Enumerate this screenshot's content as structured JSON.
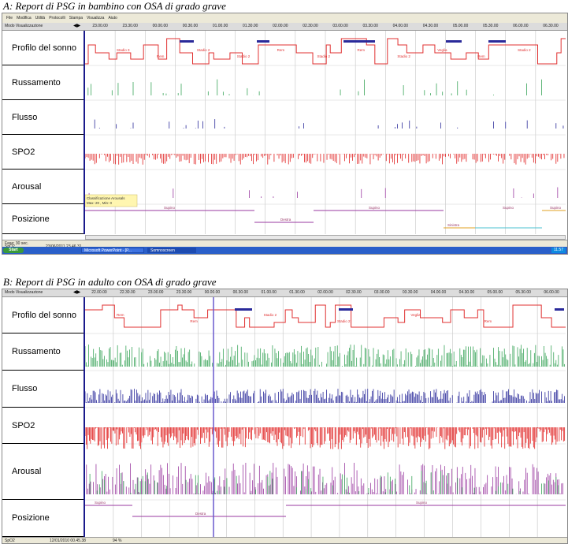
{
  "captions": {
    "a": "A: Report di PSG in bambino con OSA di grado grave",
    "b": "B: Report di PSG in adulto con OSA di grado grave"
  },
  "panel_a": {
    "menu": [
      "File",
      "Modifica",
      "Utilità",
      "Protocolli",
      "Stampa",
      "Visualizza",
      "Aiuto"
    ],
    "mode_label": "Modo Visualizzazione",
    "mode_arrows": "◀▶",
    "time_ticks": [
      "23.00.00",
      "23.30.00",
      "00.00.00",
      "00.30.00",
      "01.00.00",
      "01.30.00",
      "02.00.00",
      "02.30.00",
      "03.00.00",
      "03.30.00",
      "04.00.00",
      "04.30.00",
      "05.00.00",
      "05.30.00",
      "06.00.00",
      "06.30.00"
    ],
    "channels": [
      "Profilo del sonno",
      "Russamento",
      "Flusso",
      "SPO2",
      "Arousal",
      "Posizione"
    ],
    "hypno_labels": [
      "Stadio 3",
      "Rem",
      "Stadio 2",
      "Stadio 2",
      "Rem",
      "Stadio 2",
      "Rem",
      "Stadio 2",
      "Veglia",
      "Rem",
      "Stadio 2"
    ],
    "arousal_note_1": "Classificazione Arousals",
    "arousal_note_2": "Max: 20 , Min: 0",
    "position_labels": [
      "Supino",
      "Destra",
      "Supino",
      "Sinistra",
      "Supino",
      "Supino"
    ],
    "status": [
      "Fase: 30 sec.",
      "SpO2",
      "23/06/2011 23.46.31"
    ],
    "taskbar": {
      "start": "Start",
      "tasks": [
        "Microsoft PowerPoint - [P...",
        "Somnoscreen"
      ],
      "clock": "11.57"
    }
  },
  "panel_b": {
    "mode_label": "Modo Visualizzazione",
    "mode_arrows": "◀▶",
    "time_ticks": [
      "22.00.00",
      "22.30.00",
      "23.00.00",
      "23.30.00",
      "00.00.00",
      "00.30.00",
      "01.00.00",
      "01.30.00",
      "02.00.00",
      "02.30.00",
      "03.00.00",
      "03.30.00",
      "04.00.00",
      "04.30.00",
      "05.00.00",
      "05.30.00",
      "06.00.00"
    ],
    "channels": [
      "Profilo del sonno",
      "Russamento",
      "Flusso",
      "SPO2",
      "Arousal",
      "Posizione"
    ],
    "hypno_labels": [
      "Rem",
      "Rem",
      "Stadio 2",
      "Stadio 2",
      "Veglia",
      "Rem"
    ],
    "position_labels": [
      "Supino",
      "Destra",
      "Supino"
    ],
    "status": [
      "SpO2",
      "12/01/2010 00.45.38",
      "94 %"
    ]
  },
  "colors": {
    "hypnogram": "#e03030",
    "rem_bar": "#2a2a9a",
    "snore": "#3aa55a",
    "flow_blue": "#2a2a9a",
    "spo2": "#e02020",
    "arousal_purple": "#9a3aa0",
    "position_purple": "#9a3aa0",
    "position_cyan": "#4ac0d0",
    "position_orange": "#e0a020",
    "label_border": "#1a1a8c",
    "marker_line": "#6a5acd"
  }
}
